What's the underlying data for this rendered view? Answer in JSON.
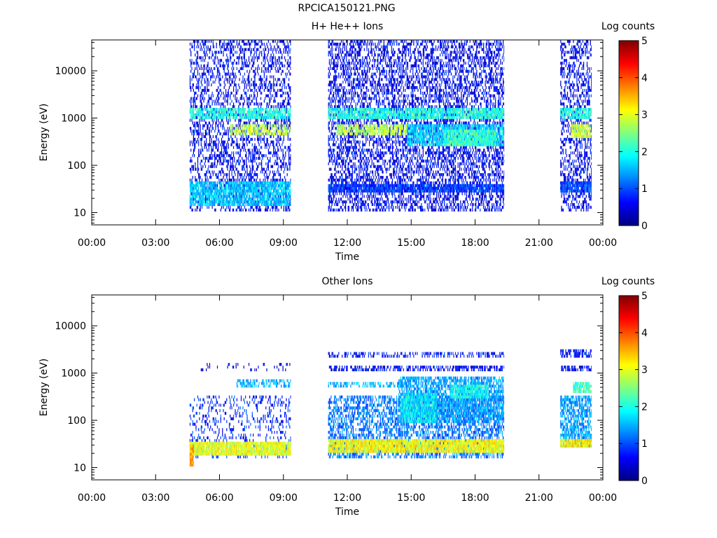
{
  "page_title": "RPCICA150121.PNG",
  "colors": {
    "colormap": [
      "#00007f",
      "#0000ff",
      "#0080ff",
      "#00ffff",
      "#80ff80",
      "#ffff00",
      "#ff8000",
      "#ff0000",
      "#7f0000"
    ],
    "background": "#ffffff",
    "axis": "#000000"
  },
  "chart_data": [
    {
      "type": "heatmap",
      "title": "H+ He++ Ions",
      "xlabel": "Time",
      "ylabel": "Energy (eV)",
      "y_scale": "log",
      "ylim": [
        5.5,
        45000
      ],
      "xlim_hours": [
        0,
        24
      ],
      "x_ticks": [
        "00:00",
        "03:00",
        "06:00",
        "09:00",
        "12:00",
        "15:00",
        "18:00",
        "21:00",
        "00:00"
      ],
      "y_ticks": [
        10,
        100,
        1000,
        10000
      ],
      "y_tick_labels": [
        "10",
        "100",
        "1000",
        "10000"
      ],
      "colorbar": {
        "label": "Log counts",
        "range": [
          0,
          5
        ],
        "ticks": [
          "0",
          "1",
          "2",
          "3",
          "4",
          "5"
        ]
      },
      "data_intervals_hours": [
        [
          4.6,
          9.35
        ],
        [
          11.1,
          19.35
        ],
        [
          22.0,
          23.45
        ]
      ],
      "features": [
        {
          "t": [
            4.6,
            9.35
          ],
          "e": [
            11,
            45000
          ],
          "level": 0.6,
          "density": 0.35
        },
        {
          "t": [
            4.6,
            9.35
          ],
          "e": [
            15,
            42
          ],
          "level": 1.6,
          "density": 0.85
        },
        {
          "t": [
            4.6,
            9.35
          ],
          "e": [
            1100,
            1450
          ],
          "level": 2.0,
          "density": 0.8
        },
        {
          "t": [
            6.5,
            9.35
          ],
          "e": [
            480,
            650
          ],
          "level": 2.8,
          "density": 0.6
        },
        {
          "t": [
            11.1,
            19.35
          ],
          "e": [
            11,
            45000
          ],
          "level": 0.6,
          "density": 0.45
        },
        {
          "t": [
            11.1,
            19.35
          ],
          "e": [
            27,
            40
          ],
          "level": 0.9,
          "density": 0.9
        },
        {
          "t": [
            11.1,
            19.35
          ],
          "e": [
            1100,
            1450
          ],
          "level": 2.0,
          "density": 0.85
        },
        {
          "t": [
            11.5,
            14.8
          ],
          "e": [
            480,
            700
          ],
          "level": 2.8,
          "density": 0.7
        },
        {
          "t": [
            14.8,
            19.35
          ],
          "e": [
            260,
            700
          ],
          "level": 1.7,
          "density": 0.8
        },
        {
          "t": [
            16.5,
            19.0
          ],
          "e": [
            280,
            520
          ],
          "level": 2.2,
          "density": 0.8
        },
        {
          "t": [
            22.0,
            23.45
          ],
          "e": [
            11,
            45000
          ],
          "level": 0.6,
          "density": 0.4
        },
        {
          "t": [
            22.0,
            23.45
          ],
          "e": [
            30,
            42
          ],
          "level": 1.0,
          "density": 0.9
        },
        {
          "t": [
            22.0,
            23.45
          ],
          "e": [
            1100,
            1450
          ],
          "level": 2.0,
          "density": 0.85
        },
        {
          "t": [
            22.5,
            23.45
          ],
          "e": [
            420,
            700
          ],
          "level": 2.9,
          "density": 0.85
        }
      ]
    },
    {
      "type": "heatmap",
      "title": "Other Ions",
      "xlabel": "Time",
      "ylabel": "Energy (eV)",
      "y_scale": "log",
      "ylim": [
        5.5,
        45000
      ],
      "xlim_hours": [
        0,
        24
      ],
      "x_ticks": [
        "00:00",
        "03:00",
        "06:00",
        "09:00",
        "12:00",
        "15:00",
        "18:00",
        "21:00",
        "00:00"
      ],
      "y_ticks": [
        10,
        100,
        1000,
        10000
      ],
      "y_tick_labels": [
        "10",
        "100",
        "1000",
        "10000"
      ],
      "colorbar": {
        "label": "Log counts",
        "range": [
          0,
          5
        ],
        "ticks": [
          "0",
          "1",
          "2",
          "3",
          "4",
          "5"
        ]
      },
      "data_intervals_hours": [
        [
          4.6,
          9.35
        ],
        [
          11.1,
          19.35
        ],
        [
          22.0,
          23.45
        ]
      ],
      "features": [
        {
          "t": [
            4.6,
            9.35
          ],
          "e": [
            18,
            300
          ],
          "level": 0.8,
          "density": 0.2
        },
        {
          "t": [
            4.6,
            9.35
          ],
          "e": [
            20,
            32
          ],
          "level": 3.0,
          "density": 0.95
        },
        {
          "t": [
            4.6,
            4.8
          ],
          "e": [
            11,
            30
          ],
          "level": 3.6,
          "density": 0.95
        },
        {
          "t": [
            6.8,
            9.35
          ],
          "e": [
            520,
            650
          ],
          "level": 1.5,
          "density": 0.5
        },
        {
          "t": [
            4.6,
            9.35
          ],
          "e": [
            1200,
            1450
          ],
          "level": 0.5,
          "density": 0.1
        },
        {
          "t": [
            11.1,
            19.35
          ],
          "e": [
            17,
            300
          ],
          "level": 1.2,
          "density": 0.5
        },
        {
          "t": [
            11.1,
            19.35
          ],
          "e": [
            22,
            38
          ],
          "level": 3.1,
          "density": 0.95
        },
        {
          "t": [
            14.4,
            19.35
          ],
          "e": [
            100,
            800
          ],
          "level": 1.4,
          "density": 0.7
        },
        {
          "t": [
            14.5,
            16.2
          ],
          "e": [
            100,
            350
          ],
          "level": 1.8,
          "density": 0.8
        },
        {
          "t": [
            16.8,
            18.6
          ],
          "e": [
            330,
            520
          ],
          "level": 1.9,
          "density": 0.85
        },
        {
          "t": [
            11.1,
            15.0
          ],
          "e": [
            500,
            600
          ],
          "level": 1.5,
          "density": 0.5
        },
        {
          "t": [
            11.1,
            19.35
          ],
          "e": [
            1150,
            1300
          ],
          "level": 0.6,
          "density": 0.5
        },
        {
          "t": [
            11.1,
            19.35
          ],
          "e": [
            2200,
            2600
          ],
          "level": 0.7,
          "density": 0.4
        },
        {
          "t": [
            22.0,
            23.45
          ],
          "e": [
            30,
            300
          ],
          "level": 1.4,
          "density": 0.7
        },
        {
          "t": [
            22.0,
            23.45
          ],
          "e": [
            27,
            40
          ],
          "level": 3.2,
          "density": 0.95
        },
        {
          "t": [
            22.6,
            23.45
          ],
          "e": [
            420,
            620
          ],
          "level": 2.2,
          "density": 0.85
        },
        {
          "t": [
            22.0,
            23.45
          ],
          "e": [
            1200,
            1400
          ],
          "level": 0.6,
          "density": 0.6
        },
        {
          "t": [
            22.0,
            23.45
          ],
          "e": [
            2300,
            2800
          ],
          "level": 0.7,
          "density": 0.6
        }
      ]
    }
  ]
}
